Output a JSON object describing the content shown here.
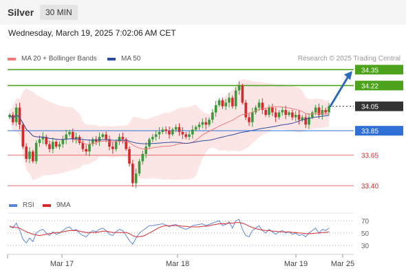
{
  "header": {
    "title": "Silver",
    "timeframe": "30 MIN",
    "datetime": "Wednesday, March 19, 2025 7:02:06 AM CET"
  },
  "legend": {
    "ma20": "MA 20 + Bollinger Bands",
    "ma50": "MA 50",
    "credit": "Research © 2025 Trading Central",
    "rsi": "RSI",
    "ma9": "9MA"
  },
  "colors": {
    "up": "#3a9a3a",
    "down": "#d62a2a",
    "bollinger": "#fbdada",
    "ma20": "#f47a7a",
    "ma50": "#2c4b9c",
    "target": "#4ca21a",
    "pivot": "#2f6fd6",
    "support": "#e86a6a",
    "last": "#333333",
    "rsi": "#5b86d8",
    "ma9": "#d62a2a"
  },
  "chart_data": {
    "type": "candlestick",
    "xlabels": [
      "Mar 17",
      "Mar 18",
      "Mar 19",
      "Mar 25"
    ],
    "ylim": [
      33.35,
      34.38
    ],
    "levels": [
      {
        "value": 34.35,
        "label": "34.35",
        "kind": "target"
      },
      {
        "value": 34.22,
        "label": "34.22",
        "kind": "target"
      },
      {
        "value": 34.05,
        "label": "34.05",
        "kind": "last"
      },
      {
        "value": 33.85,
        "label": "33.85",
        "kind": "pivot"
      },
      {
        "value": 33.65,
        "label": "33.65",
        "kind": "support"
      },
      {
        "value": 33.4,
        "label": "33.40",
        "kind": "support"
      }
    ],
    "close": [
      33.98,
      33.92,
      34.04,
      33.9,
      33.72,
      33.62,
      33.68,
      33.6,
      33.75,
      33.78,
      33.8,
      33.74,
      33.7,
      33.76,
      33.72,
      33.74,
      33.78,
      33.82,
      33.84,
      33.78,
      33.8,
      33.75,
      33.7,
      33.68,
      33.74,
      33.78,
      33.76,
      33.8,
      33.82,
      33.78,
      33.72,
      33.7,
      33.76,
      33.8,
      33.78,
      33.7,
      33.58,
      33.42,
      33.5,
      33.6,
      33.66,
      33.72,
      33.78,
      33.8,
      33.82,
      33.84,
      33.86,
      33.85,
      33.82,
      33.86,
      33.88,
      33.84,
      33.82,
      33.8,
      33.82,
      33.86,
      33.88,
      33.9,
      33.92,
      33.9,
      33.94,
      34.0,
      34.06,
      34.1,
      34.05,
      34.08,
      34.12,
      34.05,
      34.18,
      34.22,
      34.08,
      33.96,
      33.92,
      34.0,
      34.04,
      34.08,
      34.02,
      33.98,
      34.04,
      34.0,
      33.96,
      34.0,
      34.02,
      33.98,
      34.0,
      33.96,
      33.98,
      33.94,
      33.96,
      33.9,
      33.96,
      34.0,
      34.04,
      33.98,
      34.02,
      34.0,
      34.05
    ],
    "rsi": [
      62,
      58,
      66,
      55,
      40,
      34,
      42,
      36,
      50,
      54,
      56,
      50,
      46,
      52,
      48,
      50,
      54,
      58,
      60,
      54,
      56,
      50,
      46,
      44,
      50,
      54,
      52,
      56,
      58,
      54,
      48,
      46,
      52,
      56,
      54,
      46,
      38,
      32,
      42,
      50,
      54,
      58,
      62,
      62,
      63,
      64,
      65,
      63,
      60,
      63,
      64,
      60,
      58,
      56,
      58,
      62,
      63,
      64,
      65,
      62,
      64,
      66,
      68,
      70,
      62,
      64,
      68,
      58,
      70,
      72,
      56,
      46,
      44,
      54,
      58,
      62,
      54,
      50,
      56,
      52,
      48,
      52,
      54,
      50,
      52,
      48,
      50,
      46,
      48,
      44,
      50,
      54,
      58,
      50,
      56,
      54,
      58
    ],
    "ma9_rsi": [
      60,
      60,
      59,
      58,
      55,
      52,
      50,
      48,
      47,
      46,
      47,
      48,
      49,
      50,
      51,
      51,
      52,
      53,
      54,
      54,
      54,
      53,
      52,
      51,
      51,
      51,
      51,
      52,
      53,
      53,
      52,
      51,
      51,
      51,
      51,
      51,
      49,
      46,
      44,
      44,
      45,
      47,
      50,
      53,
      56,
      59,
      61,
      62,
      62,
      62,
      62,
      62,
      61,
      61,
      60,
      60,
      60,
      60,
      61,
      61,
      62,
      63,
      64,
      65,
      65,
      65,
      66,
      66,
      67,
      67,
      66,
      64,
      61,
      59,
      57,
      56,
      55,
      54,
      54,
      53,
      53,
      52,
      52,
      52,
      52,
      51,
      51,
      50,
      50,
      49,
      49,
      49,
      50,
      50,
      51,
      51,
      52
    ],
    "rsi_levels": [
      70,
      50,
      30
    ]
  }
}
